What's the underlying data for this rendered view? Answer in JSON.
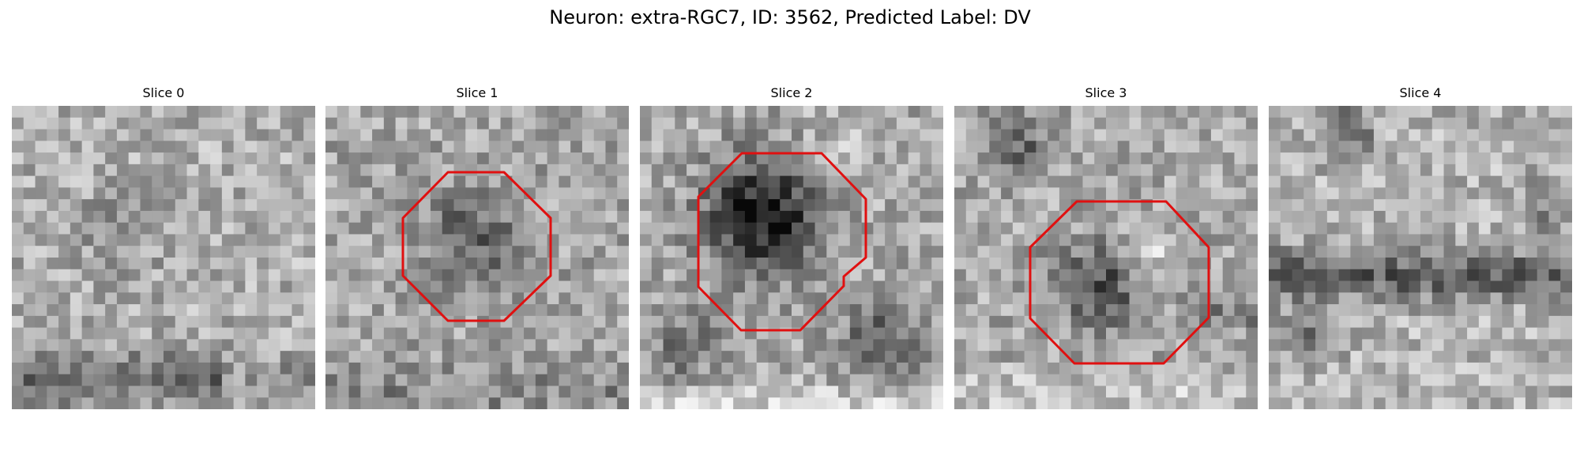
{
  "figure": {
    "title": "Neuron: extra-RGC7, ID: 3562, Predicted Label: DV"
  },
  "panels": [
    {
      "title": "Slice 0",
      "has_contour": false
    },
    {
      "title": "Slice 1",
      "has_contour": true
    },
    {
      "title": "Slice 2",
      "has_contour": true
    },
    {
      "title": "Slice 3",
      "has_contour": true
    },
    {
      "title": "Slice 4",
      "has_contour": false
    }
  ],
  "colors": {
    "contour": "#e01010",
    "background": "#ffffff"
  }
}
